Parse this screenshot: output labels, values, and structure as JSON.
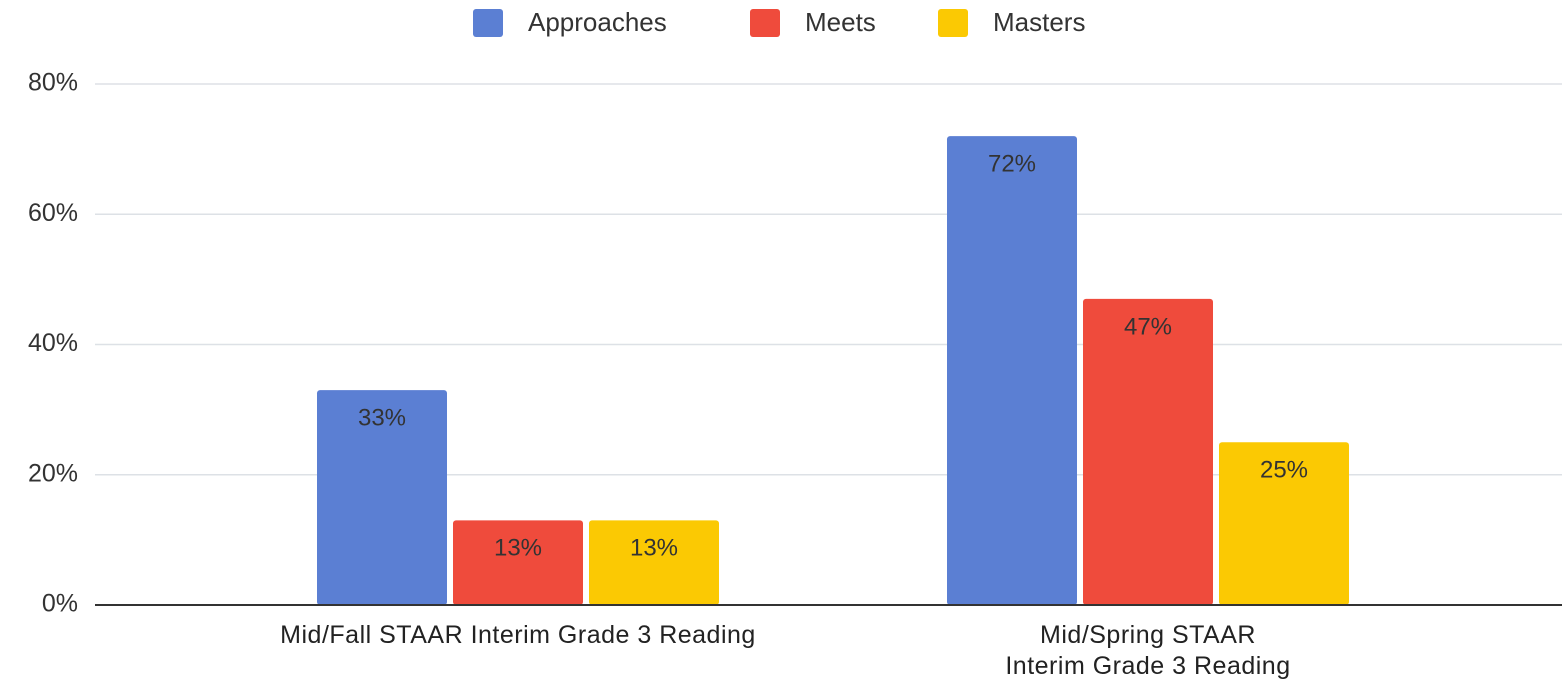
{
  "chart_data": {
    "type": "bar",
    "categories": [
      "Mid/Fall STAAR Interim Grade 3 Reading",
      "Mid/Spring STAAR\nInterim Grade 3 Reading"
    ],
    "series": [
      {
        "name": "Approaches",
        "color": "#5b7fd3",
        "values": [
          33,
          72
        ],
        "value_labels": [
          "33%",
          "72%"
        ]
      },
      {
        "name": "Meets",
        "color": "#ef4b3c",
        "values": [
          13,
          47
        ],
        "value_labels": [
          "13%",
          "47%"
        ]
      },
      {
        "name": "Masters",
        "color": "#fbc903",
        "values": [
          13,
          25
        ],
        "value_labels": [
          "13%",
          "25%"
        ]
      }
    ],
    "ylim": [
      0,
      80
    ],
    "yticks": [
      {
        "value": 0,
        "label": "0%"
      },
      {
        "value": 20,
        "label": "20%"
      },
      {
        "value": 40,
        "label": "40%"
      },
      {
        "value": 60,
        "label": "60%"
      },
      {
        "value": 80,
        "label": "80%"
      }
    ],
    "grid": true,
    "legend": "top"
  }
}
